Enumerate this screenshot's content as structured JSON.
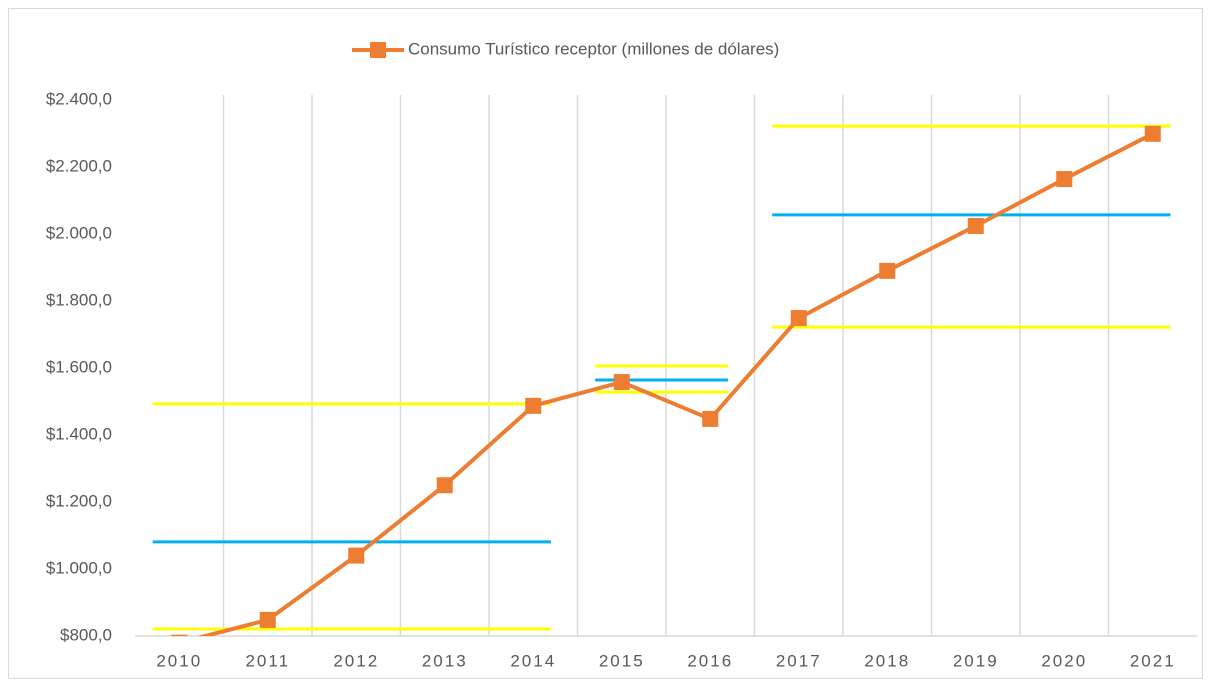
{
  "chart_data": {
    "type": "line",
    "categories": [
      "2010",
      "2011",
      "2012",
      "2013",
      "2014",
      "2015",
      "2016",
      "2017",
      "2018",
      "2019",
      "2020",
      "2021"
    ],
    "series": [
      {
        "name": "Consumo Turístico receptor (millones de dólares)",
        "color": "#ed7d31",
        "values": [
          780,
          848,
          1040,
          1250,
          1487,
          1558,
          1448,
          1749,
          1890,
          2024,
          2164,
          2299
        ]
      }
    ],
    "ylim": [
      800,
      2400
    ],
    "yticks": [
      {
        "value": 800,
        "label": "$800,0"
      },
      {
        "value": 1000,
        "label": "$1.000,0"
      },
      {
        "value": 1200,
        "label": "$1.200,0"
      },
      {
        "value": 1400,
        "label": "$1.400,0"
      },
      {
        "value": 1600,
        "label": "$1.600,0"
      },
      {
        "value": 1800,
        "label": "$1.800,0"
      },
      {
        "value": 2000,
        "label": "$2.000,0"
      },
      {
        "value": 2200,
        "label": "$2.200,0"
      },
      {
        "value": 2400,
        "label": "$2.400,0"
      }
    ],
    "grid": "x",
    "legend": "top",
    "reference_lines": [
      {
        "value": 1493,
        "color": "#ffff00",
        "from": "2010",
        "to": "2014"
      },
      {
        "value": 1081,
        "color": "#00b0f0",
        "from": "2010",
        "to": "2014"
      },
      {
        "value": 821,
        "color": "#ffff00",
        "from": "2010",
        "to": "2014"
      },
      {
        "value": 1606,
        "color": "#ffff00",
        "from": "2015",
        "to": "2016"
      },
      {
        "value": 1564,
        "color": "#00b0f0",
        "from": "2015",
        "to": "2016"
      },
      {
        "value": 1528,
        "color": "#ffff00",
        "from": "2015",
        "to": "2016"
      },
      {
        "value": 2322,
        "color": "#ffff00",
        "from": "2017",
        "to": "2021"
      },
      {
        "value": 2057,
        "color": "#00b0f0",
        "from": "2017",
        "to": "2021"
      },
      {
        "value": 1722,
        "color": "#ffff00",
        "from": "2017",
        "to": "2021"
      }
    ]
  }
}
